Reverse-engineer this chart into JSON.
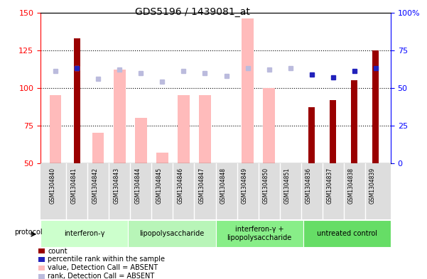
{
  "title": "GDS5196 / 1439081_at",
  "samples": [
    "GSM1304840",
    "GSM1304841",
    "GSM1304842",
    "GSM1304843",
    "GSM1304844",
    "GSM1304845",
    "GSM1304846",
    "GSM1304847",
    "GSM1304848",
    "GSM1304849",
    "GSM1304850",
    "GSM1304851",
    "GSM1304836",
    "GSM1304837",
    "GSM1304838",
    "GSM1304839"
  ],
  "count_values": [
    null,
    133,
    null,
    null,
    null,
    null,
    null,
    null,
    null,
    null,
    null,
    null,
    87,
    92,
    105,
    125
  ],
  "rank_pct": [
    null,
    63,
    null,
    null,
    null,
    null,
    null,
    null,
    null,
    null,
    null,
    null,
    59,
    57,
    61,
    63
  ],
  "absent_values": [
    95,
    null,
    70,
    112,
    80,
    57,
    95,
    95,
    null,
    146,
    100,
    null,
    null,
    null,
    null,
    null
  ],
  "absent_rank_pct": [
    61,
    63,
    56,
    62,
    60,
    54,
    61,
    60,
    58,
    63,
    62,
    63,
    null,
    null,
    null,
    null
  ],
  "ylim_left": [
    50,
    150
  ],
  "ylim_right": [
    0,
    100
  ],
  "yticks_left": [
    50,
    75,
    100,
    125,
    150
  ],
  "ytick_labels_left": [
    "50",
    "75",
    "100",
    "125",
    "150"
  ],
  "yticks_right": [
    0,
    25,
    50,
    75,
    100
  ],
  "ytick_labels_right": [
    "0",
    "25",
    "50",
    "75",
    "100%"
  ],
  "groups": [
    {
      "label": "interferon-γ",
      "start": 0,
      "end": 4,
      "color": "#ccffcc"
    },
    {
      "label": "lipopolysaccharide",
      "start": 4,
      "end": 8,
      "color": "#b8f5b8"
    },
    {
      "label": "interferon-γ +\nlipopolysaccharide",
      "start": 8,
      "end": 12,
      "color": "#88ee88"
    },
    {
      "label": "untreated control",
      "start": 12,
      "end": 16,
      "color": "#66dd66"
    }
  ],
  "bar_width": 0.55,
  "count_color": "#990000",
  "rank_color": "#2222bb",
  "absent_color": "#ffbbbb",
  "absent_rank_color": "#bbbbdd",
  "plot_bg": "#ffffff",
  "label_bg": "#dddddd"
}
